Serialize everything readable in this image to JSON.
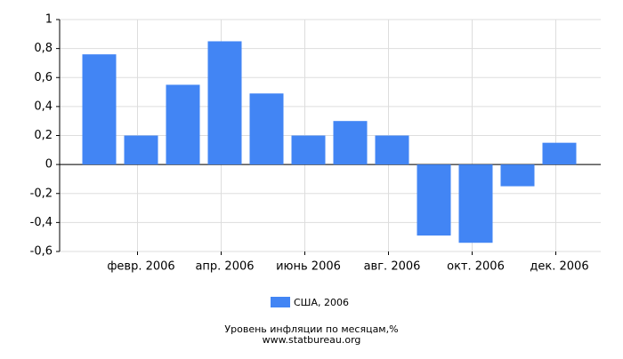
{
  "chart_data": {
    "type": "bar",
    "title": "Уровень инфляции по месяцам,%",
    "subtitle": "www.statbureau.org",
    "categories": [
      null,
      "февр. 2006",
      null,
      "апр. 2006",
      null,
      "июнь 2006",
      null,
      "авг. 2006",
      null,
      "окт. 2006",
      null,
      "дек. 2006"
    ],
    "series": [
      {
        "name": "США, 2006",
        "color": "#4285f4",
        "values": [
          0.76,
          0.2,
          0.55,
          0.85,
          0.49,
          0.2,
          0.3,
          0.2,
          -0.49,
          -0.54,
          -0.15,
          0.15
        ]
      }
    ],
    "ylim": [
      -0.6,
      1
    ],
    "yticks": [
      {
        "value": -0.6,
        "label": "-0,6"
      },
      {
        "value": -0.4,
        "label": "-0,4"
      },
      {
        "value": -0.2,
        "label": "-0,2"
      },
      0,
      {
        "value": 0.2,
        "label": "0,2"
      },
      {
        "value": 0.4,
        "label": "0,4"
      },
      {
        "value": 0.6,
        "label": "0,6"
      },
      {
        "value": 0.8,
        "label": "0,8"
      },
      1
    ],
    "grid": true,
    "legend": "bottom"
  }
}
